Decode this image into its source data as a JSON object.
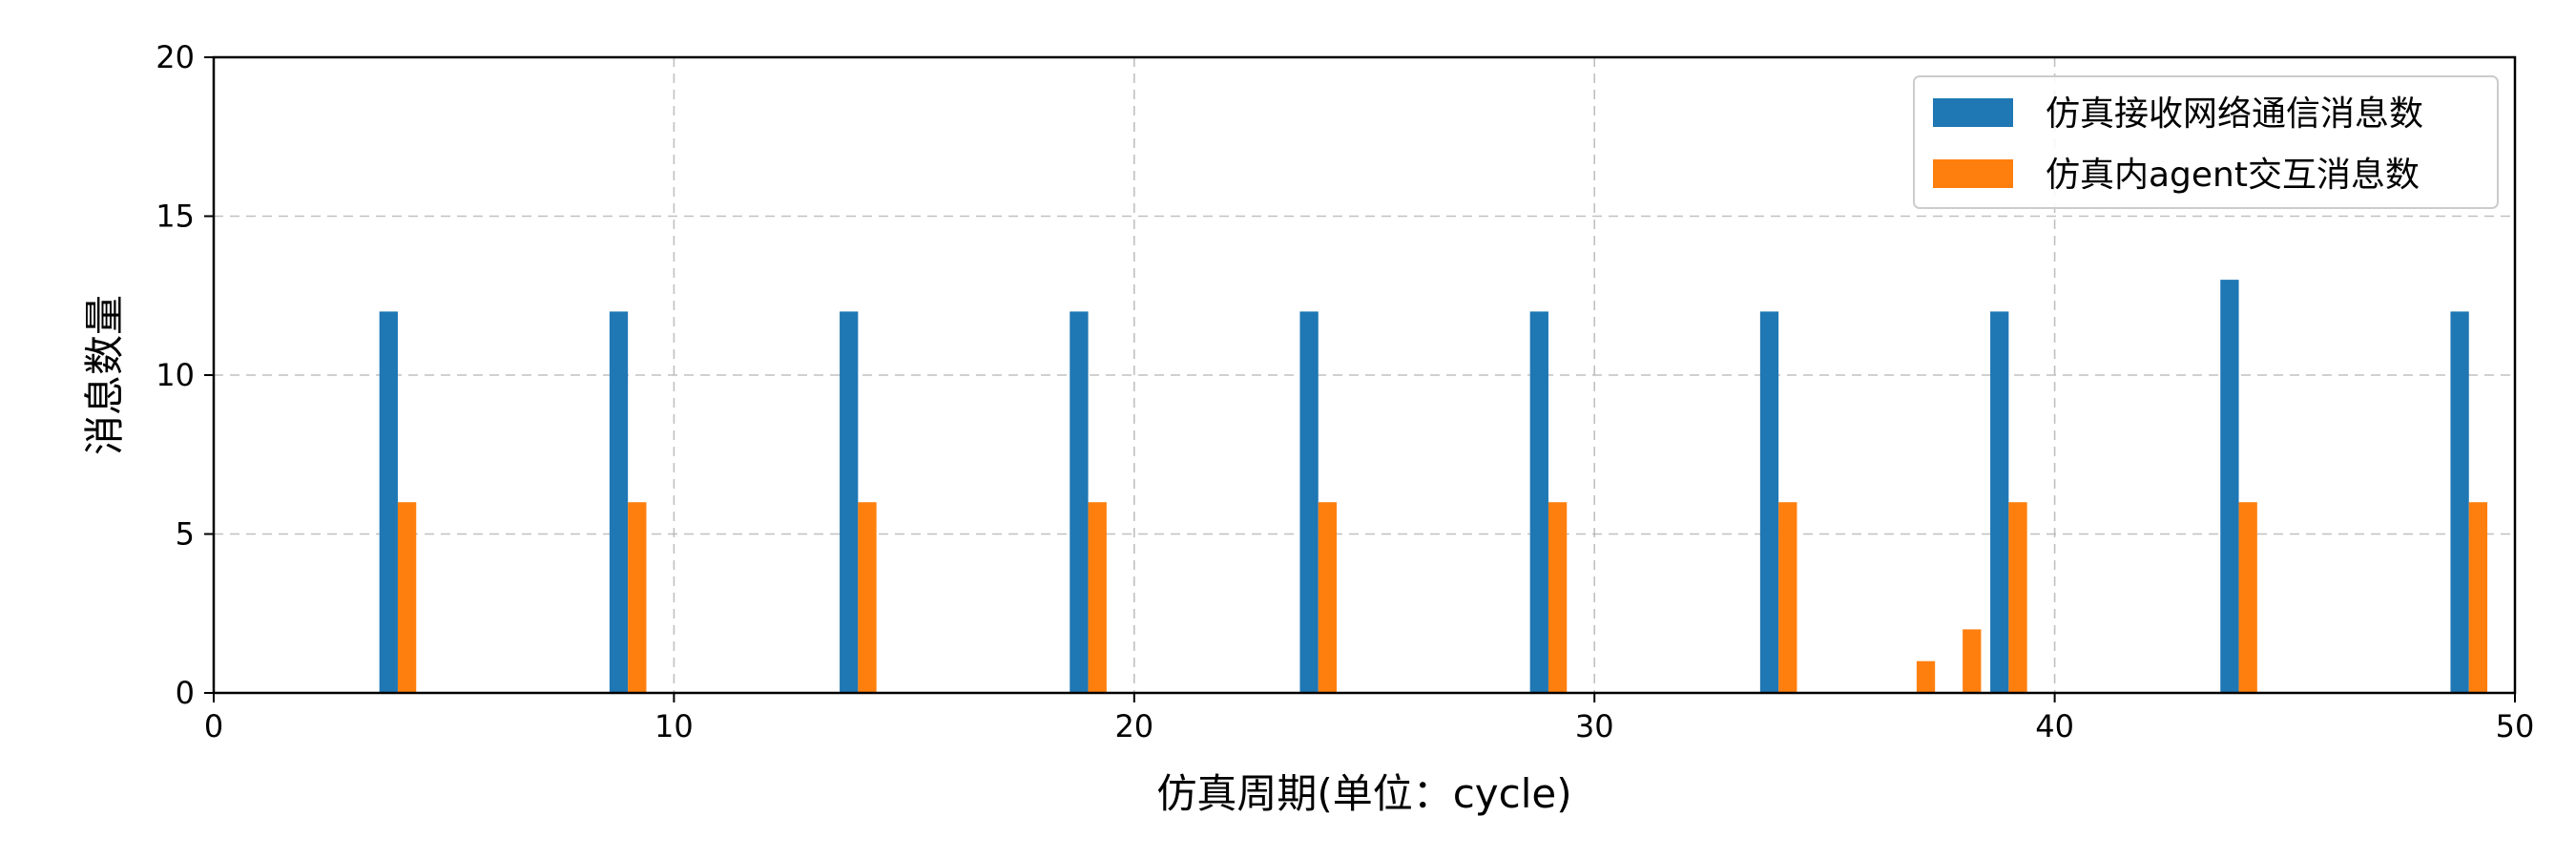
{
  "chart_data": {
    "type": "bar",
    "title": "",
    "xlabel": "仿真周期(单位：cycle)",
    "ylabel": "消息数量",
    "xlim": [
      0,
      50
    ],
    "ylim": [
      0,
      20
    ],
    "xticks": [
      0,
      10,
      20,
      30,
      40,
      50
    ],
    "yticks": [
      0,
      5,
      10,
      15,
      20
    ],
    "grid": true,
    "legend_position": "top-right",
    "series": [
      {
        "name": "仿真接收网络通信消息数",
        "color": "#1f77b4",
        "points": [
          {
            "x": 3.8,
            "y": 12
          },
          {
            "x": 8.8,
            "y": 12
          },
          {
            "x": 13.8,
            "y": 12
          },
          {
            "x": 18.8,
            "y": 12
          },
          {
            "x": 23.8,
            "y": 12
          },
          {
            "x": 28.8,
            "y": 12
          },
          {
            "x": 33.8,
            "y": 12
          },
          {
            "x": 38.8,
            "y": 12
          },
          {
            "x": 43.8,
            "y": 13
          },
          {
            "x": 48.8,
            "y": 12
          }
        ]
      },
      {
        "name": "仿真内agent交互消息数",
        "color": "#ff7f0e",
        "points": [
          {
            "x": 4.2,
            "y": 6
          },
          {
            "x": 9.2,
            "y": 6
          },
          {
            "x": 14.2,
            "y": 6
          },
          {
            "x": 19.2,
            "y": 6
          },
          {
            "x": 24.2,
            "y": 6
          },
          {
            "x": 29.2,
            "y": 6
          },
          {
            "x": 34.2,
            "y": 6
          },
          {
            "x": 37.2,
            "y": 1
          },
          {
            "x": 38.2,
            "y": 2
          },
          {
            "x": 39.2,
            "y": 6
          },
          {
            "x": 44.2,
            "y": 6
          },
          {
            "x": 49.2,
            "y": 6
          }
        ]
      }
    ]
  }
}
